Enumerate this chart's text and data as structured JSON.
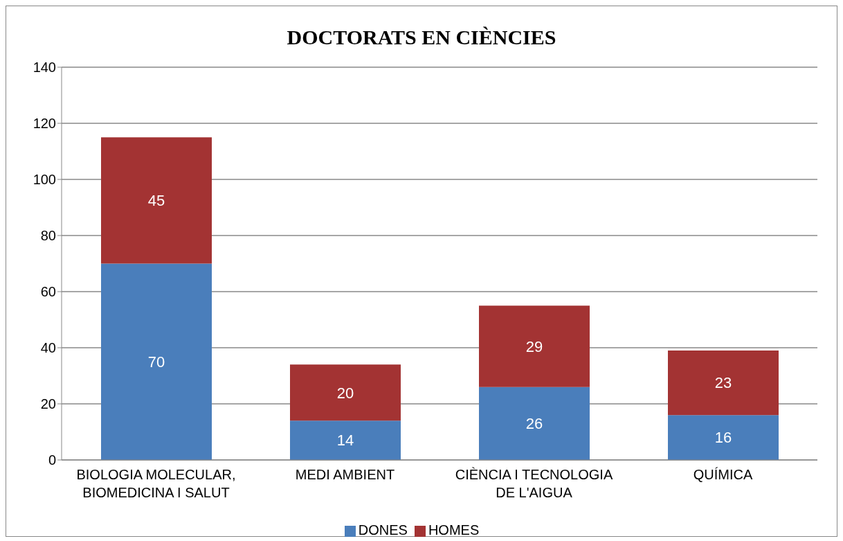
{
  "chart_data": {
    "type": "bar",
    "title": "DOCTORATS EN CIÈNCIES",
    "categories": [
      "BIOLOGIA MOLECULAR, BIOMEDICINA I SALUT",
      "MEDI AMBIENT",
      "CIÈNCIA I TECNOLOGIA DE L'AIGUA",
      "QUÍMICA"
    ],
    "series": [
      {
        "name": "DONES",
        "color": "#4a7ebb",
        "values": [
          70,
          14,
          26,
          16
        ]
      },
      {
        "name": "HOMES",
        "color": "#a33333",
        "values": [
          45,
          20,
          29,
          23
        ]
      }
    ],
    "stacked": true,
    "ylim": [
      0,
      140
    ],
    "yticks": [
      0,
      20,
      40,
      60,
      80,
      100,
      120,
      140
    ],
    "grid": "y",
    "legend": "bottom",
    "data_labels": true
  }
}
